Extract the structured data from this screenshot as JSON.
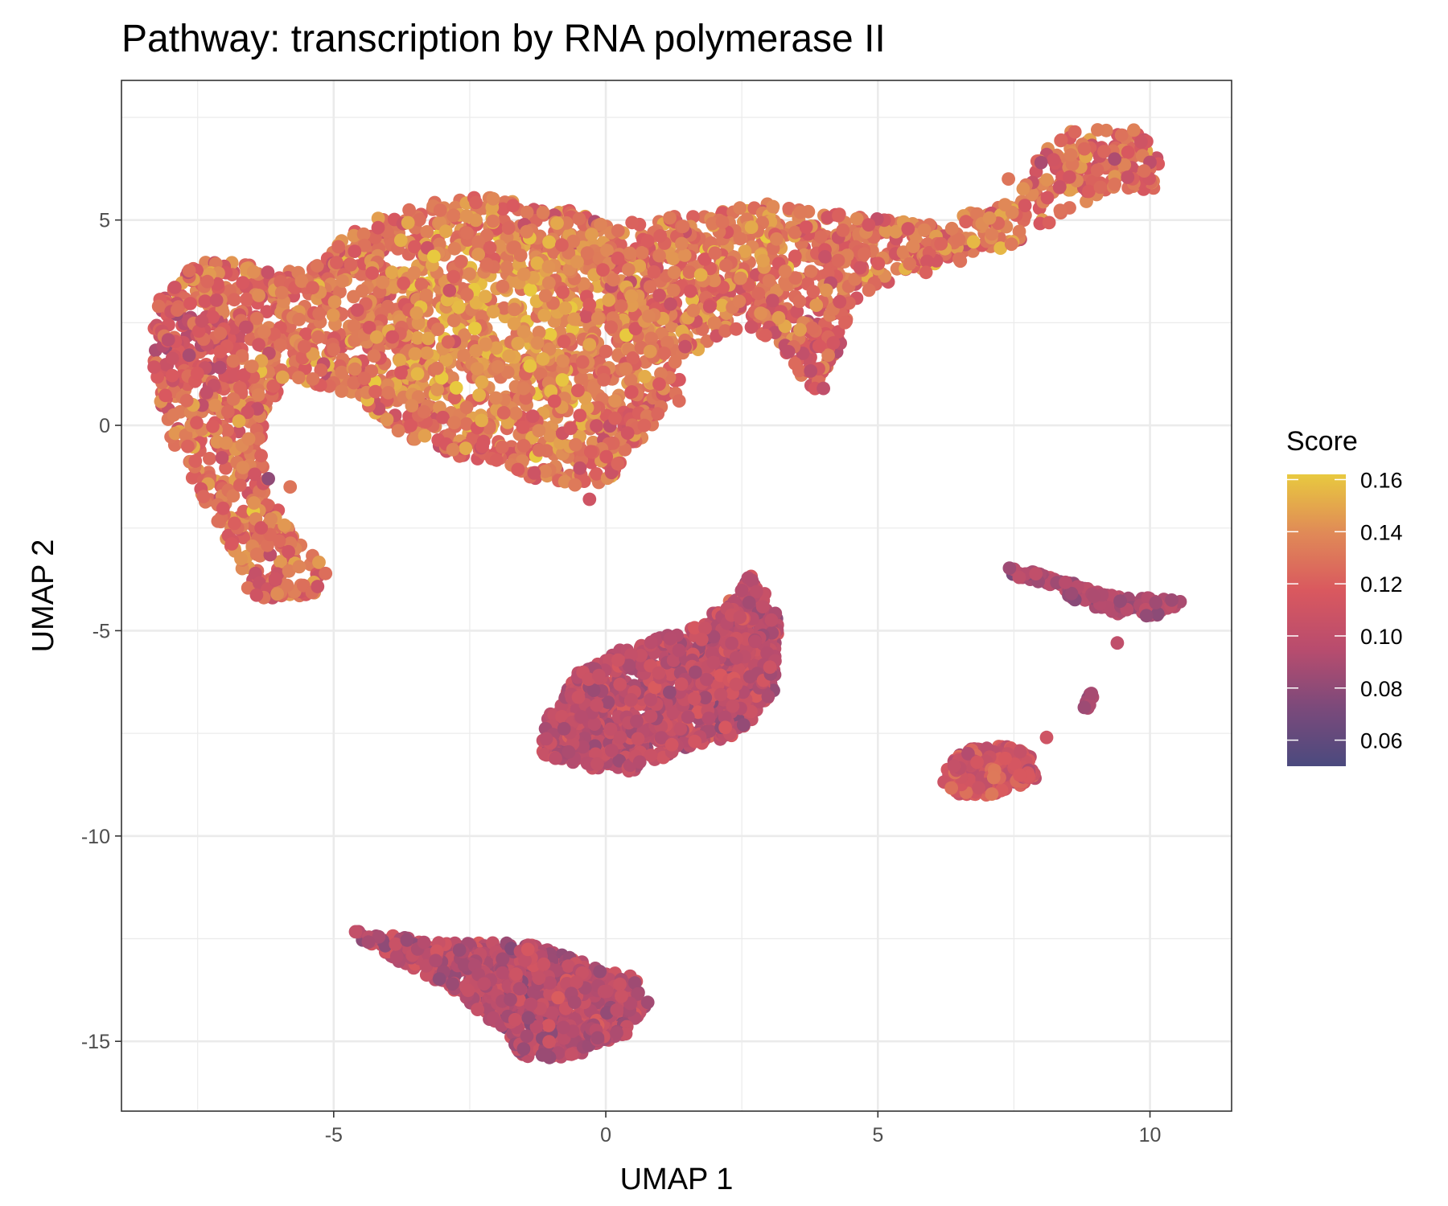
{
  "chart_data": {
    "type": "scatter",
    "title": "Pathway: transcription by RNA polymerase II",
    "xlabel": "UMAP 1",
    "ylabel": "UMAP 2",
    "xlim": [
      -8.9,
      11.5
    ],
    "ylim": [
      -16.7,
      8.4
    ],
    "xticks": [
      -5,
      0,
      5,
      10
    ],
    "xtick_labels": [
      "-5",
      "0",
      "5",
      "10"
    ],
    "yticks": [
      5,
      0,
      -5,
      -10,
      -15
    ],
    "ytick_labels": [
      "5",
      "0",
      "-5",
      "-10",
      "-15"
    ],
    "grid": true,
    "legend": {
      "title": "Score",
      "position": "right",
      "type": "colorbar",
      "range": [
        0.05,
        0.162
      ],
      "ticks": [
        0.16,
        0.14,
        0.12,
        0.1,
        0.08,
        0.06
      ],
      "tick_labels": [
        "0.16",
        "0.14",
        "0.12",
        "0.10",
        "0.08",
        "0.06"
      ],
      "colors": [
        "#4b4a7e",
        "#7b4a7b",
        "#b84c6e",
        "#d9585f",
        "#e08a57",
        "#e8c93f"
      ]
    },
    "clusters": [
      {
        "outline": [
          [
            -8.3,
            3.0
          ],
          [
            -7.5,
            4.1
          ],
          [
            -6.5,
            3.9
          ],
          [
            -5.5,
            3.7
          ],
          [
            -4.8,
            4.6
          ],
          [
            -4.0,
            5.2
          ],
          [
            -2.5,
            5.6
          ],
          [
            -1.0,
            5.4
          ],
          [
            0.0,
            5.0
          ],
          [
            1.5,
            5.1
          ],
          [
            3.0,
            5.4
          ],
          [
            4.5,
            5.1
          ],
          [
            6.0,
            4.9
          ],
          [
            7.5,
            5.5
          ],
          [
            8.0,
            6.6
          ],
          [
            8.5,
            7.2
          ],
          [
            9.7,
            7.3
          ],
          [
            10.2,
            6.6
          ],
          [
            10.1,
            5.7
          ],
          [
            9.2,
            5.7
          ],
          [
            8.5,
            5.2
          ],
          [
            7.5,
            4.4
          ],
          [
            6.0,
            3.7
          ],
          [
            5.0,
            3.4
          ],
          [
            4.5,
            3.0
          ],
          [
            4.3,
            1.8
          ],
          [
            3.8,
            0.8
          ],
          [
            3.2,
            2.0
          ],
          [
            2.5,
            2.4
          ],
          [
            1.4,
            1.6
          ],
          [
            1.4,
            0.6
          ],
          [
            0.5,
            -0.5
          ],
          [
            0.0,
            -1.5
          ],
          [
            -1.2,
            -1.4
          ],
          [
            -2.5,
            -0.9
          ],
          [
            -3.6,
            -0.4
          ],
          [
            -4.6,
            0.7
          ],
          [
            -5.8,
            1.2
          ],
          [
            -6.3,
            0.3
          ],
          [
            -6.2,
            -1.5
          ],
          [
            -5.7,
            -2.8
          ],
          [
            -5.0,
            -3.6
          ],
          [
            -5.4,
            -4.2
          ],
          [
            -6.5,
            -4.2
          ],
          [
            -6.9,
            -3.0
          ],
          [
            -7.4,
            -1.8
          ],
          [
            -8.0,
            -0.5
          ],
          [
            -8.3,
            1.2
          ]
        ],
        "n": 3200,
        "mean": 0.128,
        "sd": 0.017,
        "hot": [
          [
            -1.8,
            2.5,
            3.2,
            0.02
          ],
          [
            2.5,
            4.5,
            1.8,
            0.01
          ],
          [
            7.0,
            5.1,
            1.2,
            0.01
          ]
        ],
        "cool": [
          [
            -7.8,
            2.0,
            1.5,
            -0.025
          ],
          [
            3.8,
            2.0,
            1.2,
            -0.015
          ],
          [
            9.2,
            6.5,
            1.2,
            -0.01
          ]
        ]
      },
      {
        "outline": [
          [
            -1.2,
            -7.4
          ],
          [
            -0.5,
            -6.0
          ],
          [
            0.5,
            -5.3
          ],
          [
            1.5,
            -5.0
          ],
          [
            2.5,
            -4.0
          ],
          [
            2.7,
            -3.5
          ],
          [
            3.2,
            -4.8
          ],
          [
            3.1,
            -6.5
          ],
          [
            2.5,
            -7.5
          ],
          [
            1.2,
            -8.0
          ],
          [
            0.4,
            -8.5
          ],
          [
            -0.5,
            -8.3
          ],
          [
            -1.2,
            -8.0
          ]
        ],
        "n": 1100,
        "mean": 0.1,
        "sd": 0.012,
        "hot": [],
        "cool": []
      },
      {
        "outline": [
          [
            -4.6,
            -12.3
          ],
          [
            -3.0,
            -12.6
          ],
          [
            -1.5,
            -12.6
          ],
          [
            -0.5,
            -13.0
          ],
          [
            0.5,
            -13.4
          ],
          [
            0.8,
            -14.0
          ],
          [
            0.4,
            -14.8
          ],
          [
            -0.5,
            -15.4
          ],
          [
            -1.5,
            -15.4
          ],
          [
            -2.0,
            -14.6
          ],
          [
            -3.0,
            -13.6
          ],
          [
            -4.6,
            -12.5
          ]
        ],
        "n": 850,
        "mean": 0.097,
        "sd": 0.012,
        "hot": [],
        "cool": []
      },
      {
        "outline": [
          [
            6.3,
            -8.3
          ],
          [
            6.6,
            -7.9
          ],
          [
            7.3,
            -7.8
          ],
          [
            7.8,
            -8.0
          ],
          [
            7.9,
            -8.6
          ],
          [
            7.2,
            -9.0
          ],
          [
            6.5,
            -9.0
          ],
          [
            6.2,
            -8.7
          ]
        ],
        "n": 300,
        "mean": 0.112,
        "sd": 0.014,
        "hot": [],
        "cool": []
      },
      {
        "outline": [
          [
            7.4,
            -3.4
          ],
          [
            8.5,
            -3.8
          ],
          [
            9.5,
            -4.2
          ],
          [
            10.6,
            -4.2
          ],
          [
            10.6,
            -4.35
          ],
          [
            10.0,
            -4.7
          ],
          [
            9.3,
            -4.6
          ],
          [
            8.5,
            -4.2
          ],
          [
            7.4,
            -3.6
          ]
        ],
        "n": 130,
        "mean": 0.09,
        "sd": 0.01,
        "hot": [],
        "cool": []
      },
      {
        "outline": [
          [
            8.7,
            -6.9
          ],
          [
            8.9,
            -6.5
          ],
          [
            9.0,
            -6.6
          ],
          [
            8.9,
            -6.9
          ]
        ],
        "n": 10,
        "mean": 0.09,
        "sd": 0.008,
        "hot": [],
        "cool": []
      }
    ],
    "outliers": [
      [
        7.4,
        6.0,
        0.13
      ],
      [
        8.0,
        6.4,
        0.09
      ],
      [
        9.4,
        -5.3,
        0.1
      ],
      [
        8.1,
        -7.6,
        0.11
      ],
      [
        -0.3,
        -1.8,
        0.11
      ],
      [
        -5.8,
        -1.5,
        0.13
      ],
      [
        -6.2,
        -1.3,
        0.08
      ],
      [
        4.0,
        0.9,
        0.1
      ]
    ]
  }
}
